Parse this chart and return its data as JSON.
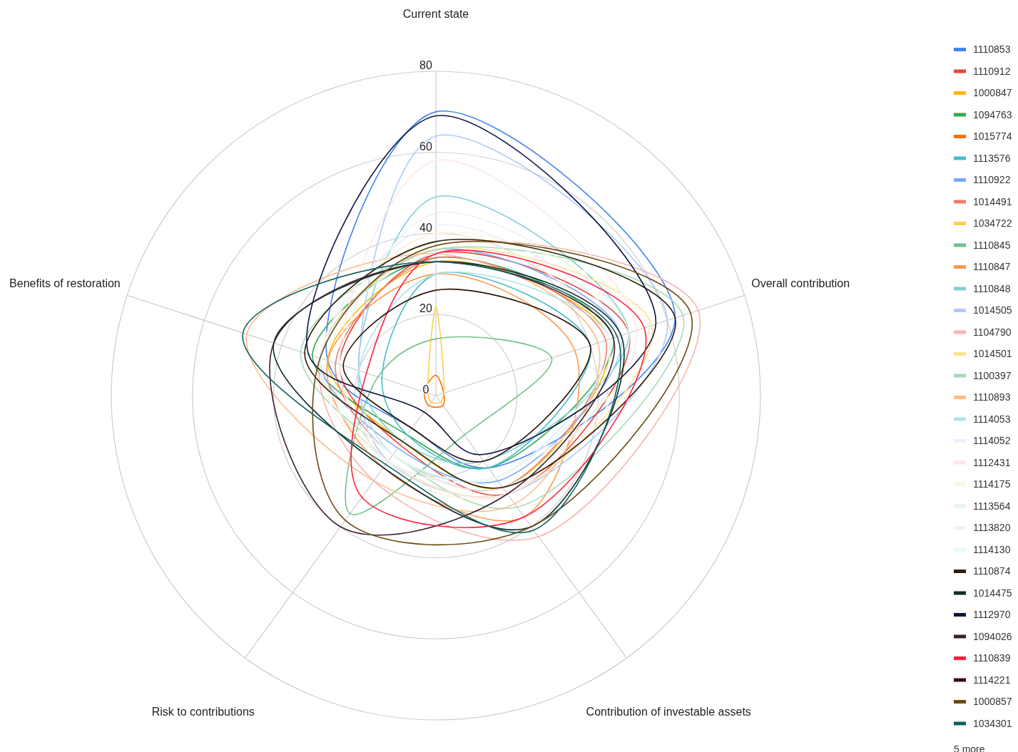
{
  "chart_data": {
    "type": "radar",
    "categories": [
      "Current state",
      "Overall contribution",
      "Contribution of investable assets",
      "Risk to contributions",
      "Benefits of restoration"
    ],
    "ylim": [
      0,
      80
    ],
    "yticks": [
      0,
      20,
      40,
      60,
      80
    ],
    "grid": true,
    "legend": "right",
    "annotations": [
      "5 more"
    ],
    "series": [
      {
        "name": "1110853",
        "color": "#4285f4",
        "values": [
          70,
          62,
          22,
          10,
          28
        ]
      },
      {
        "name": "1110912",
        "color": "#ea4335",
        "values": [
          35,
          50,
          30,
          15,
          25
        ]
      },
      {
        "name": "1000847",
        "color": "#fbbc04",
        "values": [
          33,
          45,
          28,
          14,
          28
        ]
      },
      {
        "name": "1094763",
        "color": "#34a853",
        "values": [
          34,
          46,
          22,
          12,
          32
        ]
      },
      {
        "name": "1015774",
        "color": "#ff6d01",
        "values": [
          5,
          2,
          3,
          3,
          3
        ]
      },
      {
        "name": "1113576",
        "color": "#46bdc6",
        "values": [
          30,
          40,
          22,
          12,
          14
        ]
      },
      {
        "name": "1110922",
        "color": "#7baaf7",
        "values": [
          36,
          48,
          26,
          16,
          30
        ]
      },
      {
        "name": "1014491",
        "color": "#f07b72",
        "values": [
          34,
          44,
          28,
          18,
          26
        ]
      },
      {
        "name": "1034722",
        "color": "#fcd04f",
        "values": [
          22,
          2,
          2,
          2,
          2
        ]
      },
      {
        "name": "1110845",
        "color": "#71c287",
        "values": [
          14,
          30,
          12,
          36,
          15
        ]
      },
      {
        "name": "1110847",
        "color": "#ff994d",
        "values": [
          30,
          36,
          37,
          22,
          28
        ]
      },
      {
        "name": "1110848",
        "color": "#7ed1d7",
        "values": [
          49,
          50,
          20,
          14,
          20
        ]
      },
      {
        "name": "1014505",
        "color": "#aecbfa",
        "values": [
          64,
          60,
          30,
          20,
          20
        ]
      },
      {
        "name": "1104790",
        "color": "#f7b4ae",
        "values": [
          37,
          68,
          43,
          26,
          30
        ]
      },
      {
        "name": "1014501",
        "color": "#fde293",
        "values": [
          36,
          56,
          30,
          20,
          30
        ]
      },
      {
        "name": "1100397",
        "color": "#a8dab5",
        "values": [
          36,
          64,
          34,
          18,
          35
        ]
      },
      {
        "name": "1110893",
        "color": "#ffbb88",
        "values": [
          35,
          42,
          33,
          26,
          49
        ]
      },
      {
        "name": "1114053",
        "color": "#b2e3e7",
        "values": [
          30,
          45,
          25,
          18,
          20
        ]
      },
      {
        "name": "1114052",
        "color": "#e8f0fe",
        "values": [
          42,
          48,
          25,
          20,
          30
        ]
      },
      {
        "name": "1112431",
        "color": "#fce8e6",
        "values": [
          58,
          52,
          30,
          20,
          25
        ]
      },
      {
        "name": "1114175",
        "color": "#fef7e0",
        "values": [
          40,
          55,
          25,
          18,
          30
        ]
      },
      {
        "name": "1113564",
        "color": "#e6f4ea",
        "values": [
          45,
          50,
          28,
          18,
          25
        ]
      },
      {
        "name": "1113820",
        "color": "#feefe3",
        "values": [
          40,
          45,
          30,
          22,
          30
        ]
      },
      {
        "name": "1114130",
        "color": "#e4f7fb",
        "values": [
          35,
          45,
          25,
          18,
          30
        ]
      },
      {
        "name": "1110874",
        "color": "#2d1f04",
        "values": [
          38,
          62,
          28,
          14,
          34
        ]
      },
      {
        "name": "1014475",
        "color": "#0d2b2b",
        "values": [
          33,
          48,
          40,
          22,
          42
        ]
      },
      {
        "name": "1112970",
        "color": "#0d1540",
        "values": [
          69,
          57,
          18,
          5,
          33
        ]
      },
      {
        "name": "1094026",
        "color": "#3d1f33",
        "values": [
          33,
          46,
          30,
          40,
          42
        ]
      },
      {
        "name": "1110839",
        "color": "#ff1f3d",
        "values": [
          35,
          54,
          37,
          31,
          18
        ]
      },
      {
        "name": "1114221",
        "color": "#2b1208",
        "values": [
          26,
          40,
          20,
          10,
          24
        ]
      },
      {
        "name": "1000857",
        "color": "#6b4a10",
        "values": [
          37,
          66,
          40,
          38,
          30
        ]
      },
      {
        "name": "1034301",
        "color": "#0f6060",
        "values": [
          33,
          47,
          41,
          21,
          50
        ]
      }
    ]
  }
}
